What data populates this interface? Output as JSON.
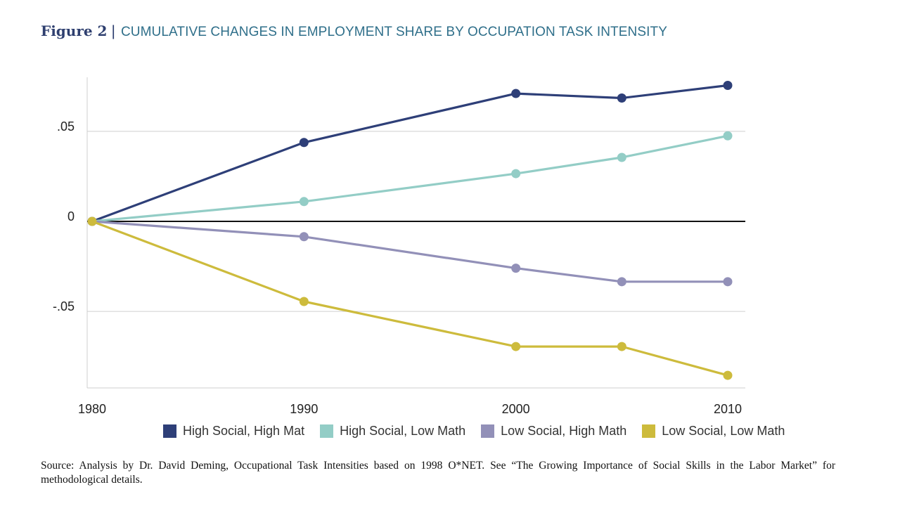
{
  "figure": {
    "label": "Figure 2",
    "separator": "|",
    "title": "CUMULATIVE CHANGES IN EMPLOYMENT SHARE BY OCCUPATION TASK INTENSITY"
  },
  "source_note": "Source: Analysis by Dr. David Deming, Occupational Task Intensities based on 1998 O*NET. See “The Growing Importance of Social Skills in the Labor Market” for methodological details.",
  "chart_data": {
    "type": "line",
    "title": "CUMULATIVE CHANGES IN EMPLOYMENT SHARE BY OCCUPATION TASK INTENSITY",
    "xlabel": "",
    "ylabel": "",
    "x": [
      1980,
      1990,
      2000,
      2005,
      2010
    ],
    "x_ticks": [
      1980,
      1990,
      2000,
      2010
    ],
    "x_tick_labels": [
      "1980",
      "1990",
      "2000",
      "2010"
    ],
    "y_ticks": [
      0.05,
      0,
      -0.05
    ],
    "y_tick_labels": [
      ".05",
      "0",
      "-.05"
    ],
    "xlim": [
      1980,
      2010
    ],
    "ylim": [
      -0.0925,
      0.08
    ],
    "grid": true,
    "zero_line": true,
    "legend_position": "bottom",
    "series": [
      {
        "name": "High Social, High Mat",
        "color": "#2e3f78",
        "values": [
          0,
          0.0438,
          0.071,
          0.0685,
          0.0755
        ]
      },
      {
        "name": "High Social, Low Math",
        "color": "#93cdc6",
        "values": [
          0,
          0.011,
          0.0265,
          0.0355,
          0.0475
        ]
      },
      {
        "name": "Low Social, High Math",
        "color": "#9290b8",
        "values": [
          0,
          -0.0085,
          -0.026,
          -0.0335,
          -0.0335
        ]
      },
      {
        "name": "Low Social, Low Math",
        "color": "#cdbb3c",
        "values": [
          0,
          -0.0445,
          -0.0695,
          -0.0695,
          -0.0855
        ]
      }
    ]
  }
}
